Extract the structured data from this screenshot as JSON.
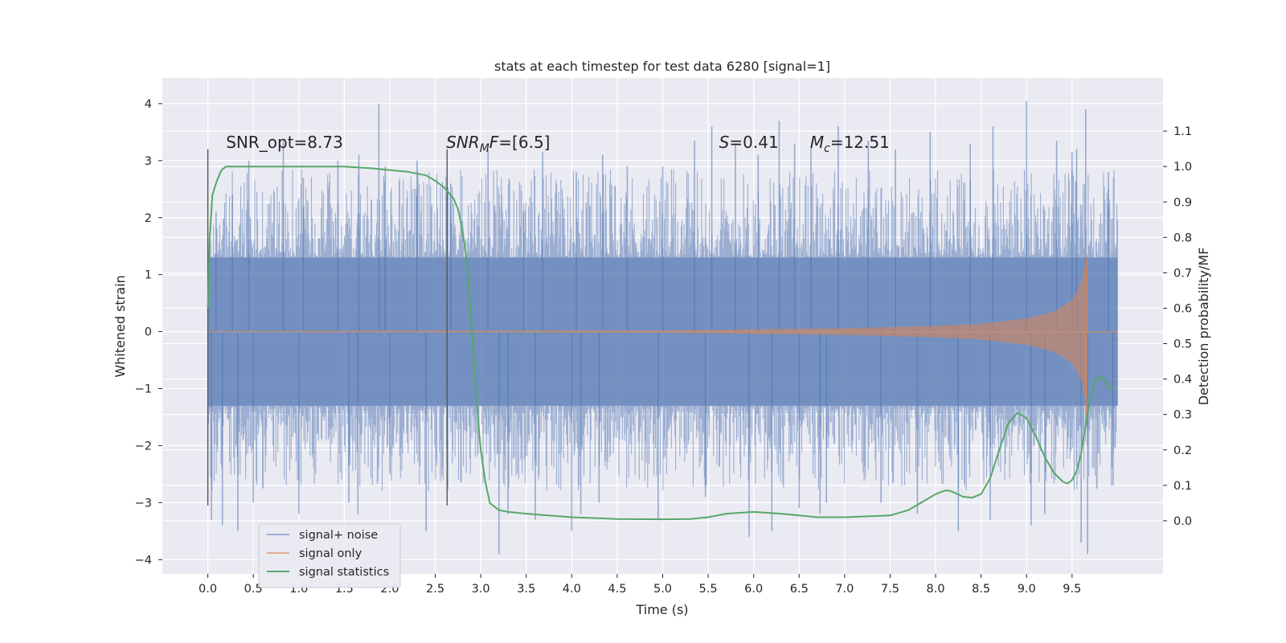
{
  "chart_data": {
    "type": "line",
    "title": "stats at each timestep for test data 6280 [signal=1]",
    "xlabel": "Time (s)",
    "ylabel": "Whitened strain",
    "y2label": "Detection probability/MF",
    "xlim": [
      -0.5,
      10.5
    ],
    "ylim": [
      -4.25,
      4.45
    ],
    "y2lim": [
      -0.15,
      1.25
    ],
    "xticks": [
      "0.0",
      "0.5",
      "1.0",
      "1.5",
      "2.0",
      "2.5",
      "3.0",
      "3.5",
      "4.0",
      "4.5",
      "5.0",
      "5.5",
      "6.0",
      "6.5",
      "7.0",
      "7.5",
      "8.0",
      "8.5",
      "9.0",
      "9.5"
    ],
    "yticks": [
      "4",
      "3",
      "2",
      "1",
      "0",
      "−1",
      "−2",
      "−3",
      "−4"
    ],
    "y2ticks": [
      "1.1",
      "1.0",
      "0.9",
      "0.8",
      "0.7",
      "0.6",
      "0.5",
      "0.4",
      "0.3",
      "0.2",
      "0.1",
      "0.0"
    ],
    "grid": true,
    "legend_position": "lower-left",
    "colors": {
      "signal_noise": "#4c72b0",
      "signal_only": "#dd8452",
      "statistics": "#55a868",
      "background": "#eaeaf2",
      "grid": "#ffffff",
      "marker_line": "#555555"
    },
    "annotations": [
      {
        "text": "SNR_opt=8.73",
        "x": 0.2
      },
      {
        "text_parts": [
          {
            "t": "SNR",
            "style": "italic"
          },
          {
            "t": "M",
            "style": "italic-sub"
          },
          {
            "t": "F",
            "style": "italic"
          },
          {
            "t": "=[6.5]",
            "style": "normal"
          }
        ],
        "x": 2.62
      },
      {
        "text_parts": [
          {
            "t": "S",
            "style": "italic"
          },
          {
            "t": "=0.41",
            "style": "normal"
          }
        ],
        "x": 5.62
      },
      {
        "text_parts": [
          {
            "t": "M",
            "style": "italic"
          },
          {
            "t": "c",
            "style": "italic-sub"
          },
          {
            "t": "=12.51",
            "style": "normal"
          }
        ],
        "x": 6.62
      }
    ],
    "vertical_markers": [
      {
        "x": 0.0,
        "y_from": -3.05,
        "y_to": 3.2
      },
      {
        "x": 2.63,
        "y_from": -3.05,
        "y_to": 3.2
      }
    ],
    "noise": {
      "x_start": 0.0,
      "x_end": 10.0,
      "band_abs": 1.3,
      "max_abs": 4.05,
      "spikes_pos": [
        [
          0.09,
          2.1
        ],
        [
          0.27,
          2.4
        ],
        [
          0.45,
          3.0
        ],
        [
          0.83,
          3.35
        ],
        [
          1.05,
          2.7
        ],
        [
          1.43,
          3.0
        ],
        [
          1.66,
          3.1
        ],
        [
          1.88,
          4.0
        ],
        [
          1.95,
          2.9
        ],
        [
          2.3,
          3.0
        ],
        [
          2.67,
          2.6
        ],
        [
          3.08,
          3.2
        ],
        [
          3.47,
          2.1
        ],
        [
          3.68,
          3.15
        ],
        [
          4.05,
          2.8
        ],
        [
          4.34,
          3.1
        ],
        [
          4.61,
          2.9
        ],
        [
          5.0,
          2.9
        ],
        [
          5.35,
          3.35
        ],
        [
          5.54,
          3.6
        ],
        [
          5.8,
          3.3
        ],
        [
          6.05,
          3.1
        ],
        [
          6.28,
          3.7
        ],
        [
          6.45,
          3.3
        ],
        [
          6.63,
          3.25
        ],
        [
          6.93,
          3.6
        ],
        [
          7.26,
          3.35
        ],
        [
          7.56,
          3.2
        ],
        [
          7.94,
          3.5
        ],
        [
          8.38,
          3.3
        ],
        [
          8.63,
          3.6
        ],
        [
          9.0,
          4.05
        ],
        [
          9.33,
          3.35
        ],
        [
          9.5,
          3.15
        ],
        [
          9.55,
          3.2
        ],
        [
          9.65,
          3.9
        ],
        [
          9.9,
          2.8
        ]
      ],
      "spikes_neg": [
        [
          0.04,
          -3.3
        ],
        [
          0.16,
          -3.4
        ],
        [
          0.33,
          -3.5
        ],
        [
          0.5,
          -3.0
        ],
        [
          1.0,
          -3.2
        ],
        [
          1.55,
          -3.0
        ],
        [
          1.65,
          -3.2
        ],
        [
          2.0,
          -2.5
        ],
        [
          2.4,
          -3.5
        ],
        [
          3.2,
          -3.9
        ],
        [
          3.3,
          -3.2
        ],
        [
          3.6,
          -3.3
        ],
        [
          4.0,
          -3.5
        ],
        [
          4.1,
          -3.2
        ],
        [
          4.3,
          -3.0
        ],
        [
          4.95,
          -3.3
        ],
        [
          5.47,
          -2.9
        ],
        [
          5.95,
          -3.6
        ],
        [
          6.2,
          -3.5
        ],
        [
          6.5,
          -3.1
        ],
        [
          6.73,
          -3.2
        ],
        [
          6.8,
          -3.0
        ],
        [
          7.4,
          -3.0
        ],
        [
          7.8,
          -3.2
        ],
        [
          8.25,
          -3.5
        ],
        [
          8.6,
          -3.3
        ],
        [
          9.05,
          -3.4
        ],
        [
          9.2,
          -3.2
        ],
        [
          9.6,
          -3.7
        ],
        [
          9.67,
          -3.9
        ],
        [
          9.95,
          -2.7
        ]
      ]
    },
    "signal_only": {
      "x_start": 0.0,
      "x_end": 9.66,
      "amp_points": [
        [
          0.0,
          0.01
        ],
        [
          5.0,
          0.02
        ],
        [
          6.0,
          0.04
        ],
        [
          7.0,
          0.06
        ],
        [
          8.0,
          0.1
        ],
        [
          8.5,
          0.14
        ],
        [
          9.0,
          0.23
        ],
        [
          9.3,
          0.35
        ],
        [
          9.5,
          0.55
        ],
        [
          9.6,
          0.85
        ],
        [
          9.66,
          1.3
        ]
      ],
      "tail_x_end": 10.0
    },
    "series": [
      {
        "name": "signal statistics",
        "axis": "y2",
        "x": [
          0.0,
          0.02,
          0.05,
          0.1,
          0.15,
          0.2,
          0.3,
          0.5,
          1.0,
          1.5,
          1.8,
          2.0,
          2.2,
          2.4,
          2.5,
          2.6,
          2.7,
          2.75,
          2.8,
          2.85,
          2.9,
          2.95,
          3.0,
          3.05,
          3.1,
          3.2,
          3.3,
          3.5,
          4.0,
          4.5,
          5.0,
          5.3,
          5.5,
          5.7,
          6.0,
          6.3,
          6.5,
          6.7,
          7.0,
          7.5,
          7.7,
          7.9,
          8.0,
          8.1,
          8.15,
          8.2,
          8.3,
          8.4,
          8.5,
          8.6,
          8.7,
          8.8,
          8.9,
          9.0,
          9.1,
          9.2,
          9.3,
          9.4,
          9.45,
          9.5,
          9.55,
          9.6,
          9.65,
          9.7,
          9.75,
          9.8,
          9.85,
          9.9,
          9.95
        ],
        "y": [
          0.6,
          0.8,
          0.92,
          0.96,
          0.99,
          1.0,
          1.0,
          1.0,
          1.0,
          1.0,
          0.995,
          0.99,
          0.985,
          0.975,
          0.96,
          0.94,
          0.91,
          0.88,
          0.82,
          0.72,
          0.55,
          0.35,
          0.2,
          0.11,
          0.05,
          0.03,
          0.025,
          0.02,
          0.01,
          0.005,
          0.004,
          0.005,
          0.01,
          0.02,
          0.025,
          0.02,
          0.015,
          0.01,
          0.01,
          0.015,
          0.03,
          0.06,
          0.075,
          0.085,
          0.085,
          0.08,
          0.068,
          0.065,
          0.075,
          0.12,
          0.2,
          0.275,
          0.305,
          0.29,
          0.24,
          0.18,
          0.135,
          0.11,
          0.105,
          0.115,
          0.14,
          0.19,
          0.27,
          0.35,
          0.395,
          0.405,
          0.4,
          0.38,
          0.37
        ]
      },
      {
        "name": "signal+ noise",
        "axis": "y"
      },
      {
        "name": "signal only",
        "axis": "y"
      }
    ],
    "legend": [
      "signal+ noise",
      "signal only",
      "signal statistics"
    ]
  }
}
